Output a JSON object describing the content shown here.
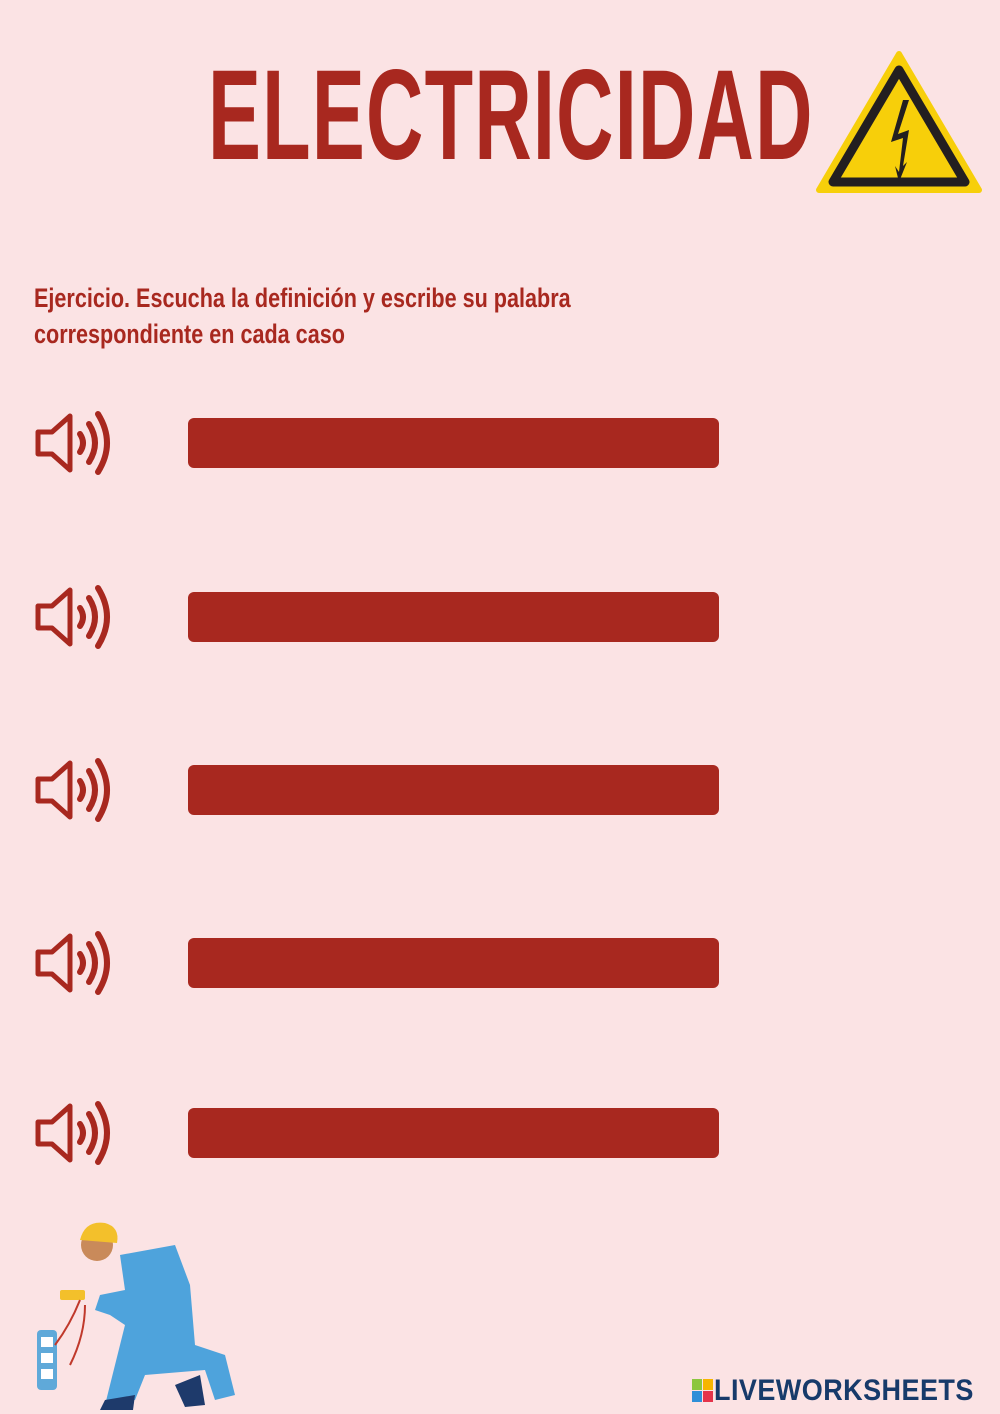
{
  "header": {
    "title": "ELECTRICIDAD",
    "icon": "high-voltage-warning-icon"
  },
  "instructions": {
    "line1": "Ejercicio. Escucha la definición y escribe su palabra",
    "line2": "correspondiente en cada caso"
  },
  "exercise": {
    "items": [
      {
        "audio_icon": "speaker-icon",
        "answer": ""
      },
      {
        "audio_icon": "speaker-icon",
        "answer": ""
      },
      {
        "audio_icon": "speaker-icon",
        "answer": ""
      },
      {
        "audio_icon": "speaker-icon",
        "answer": ""
      },
      {
        "audio_icon": "speaker-icon",
        "answer": ""
      }
    ]
  },
  "footer": {
    "brand": "LIVEWORKSHEETS",
    "illustration": "electrician-illustration"
  },
  "colors": {
    "background": "#fbe3e4",
    "accent": "#a8281f",
    "warning_yellow": "#f7cf0a",
    "brand": "#173a6a"
  }
}
